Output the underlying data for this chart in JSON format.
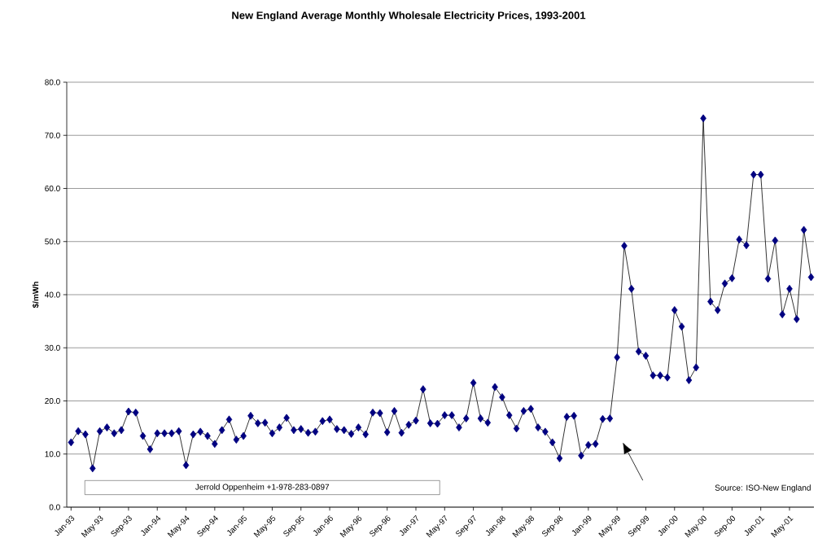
{
  "chart_data": {
    "type": "line",
    "title": "New England Average Monthly Wholesale Electricity Prices, 1993-2001",
    "ylabel": "$/mWh",
    "categories": [
      "Jan-93",
      null,
      null,
      null,
      "May-93",
      null,
      null,
      null,
      "Sep-93",
      null,
      null,
      null,
      "Jan-94",
      null,
      null,
      null,
      "May-94",
      null,
      null,
      null,
      "Sep-94",
      null,
      null,
      null,
      "Jan-95",
      null,
      null,
      null,
      "May-95",
      null,
      null,
      null,
      "Sep-95",
      null,
      null,
      null,
      "Jan-96",
      null,
      null,
      null,
      "May-96",
      null,
      null,
      null,
      "Sep-96",
      null,
      null,
      null,
      "Jan-97",
      null,
      null,
      null,
      "May-97",
      null,
      null,
      null,
      "Sep-97",
      null,
      null,
      null,
      "Jan-98",
      null,
      null,
      null,
      "May-98",
      null,
      null,
      null,
      "Sep-98",
      null,
      null,
      null,
      "Jan-99",
      null,
      null,
      null,
      "May-99",
      null,
      null,
      null,
      "Sep-99",
      null,
      null,
      null,
      "Jan-00",
      null,
      null,
      null,
      "May-00",
      null,
      null,
      null,
      "Sep-00",
      null,
      null,
      null,
      "Jan-01",
      null,
      null,
      null,
      "May-01",
      null,
      null,
      null
    ],
    "values": [
      12.2,
      14.3,
      13.7,
      7.3,
      14.3,
      15.0,
      13.9,
      14.5,
      18.0,
      17.8,
      13.4,
      10.9,
      13.9,
      13.9,
      13.9,
      14.3,
      7.9,
      13.7,
      14.2,
      13.4,
      11.9,
      14.5,
      16.5,
      12.7,
      13.4,
      17.2,
      15.8,
      15.9,
      13.9,
      15.0,
      16.8,
      14.5,
      14.7,
      14.0,
      14.2,
      16.2,
      16.5,
      14.7,
      14.5,
      13.8,
      15.0,
      13.7,
      17.8,
      17.7,
      14.1,
      18.1,
      14.0,
      15.5,
      16.3,
      22.2,
      15.8,
      15.7,
      17.3,
      17.3,
      15.0,
      16.7,
      23.4,
      16.7,
      15.9,
      22.6,
      20.7,
      17.3,
      14.8,
      18.1,
      18.5,
      15.0,
      14.2,
      12.2,
      9.2,
      17.0,
      17.2,
      9.7,
      11.7,
      11.9,
      16.6,
      16.7,
      28.2,
      49.2,
      41.1,
      29.3,
      28.5,
      24.8,
      24.8,
      24.4,
      37.1,
      34.0,
      23.9,
      26.3,
      73.2,
      38.7,
      37.1,
      42.1,
      43.1,
      50.4,
      49.3,
      62.6,
      62.6,
      43.0,
      50.2,
      36.3,
      41.1,
      35.4,
      52.2,
      43.3
    ],
    "color": "#000080",
    "ylim": [
      0,
      80
    ],
    "yticks": [
      {
        "value": 0,
        "label": "0.0"
      },
      {
        "value": 10,
        "label": "10.0"
      },
      {
        "value": 20,
        "label": "20.0"
      },
      {
        "value": 30,
        "label": "30.0"
      },
      {
        "value": 40,
        "label": "40.0"
      },
      {
        "value": 50,
        "label": "50.0"
      },
      {
        "value": 60,
        "label": "60.0"
      },
      {
        "value": 70,
        "label": "70.0"
      },
      {
        "value": 80,
        "label": "80.0"
      }
    ],
    "grid": "y",
    "marker": "diamond",
    "line_style": "solid",
    "annotations": [
      "Jerrold Oppenheim +1-978-283-0897",
      "Source: ISO-New England"
    ]
  }
}
